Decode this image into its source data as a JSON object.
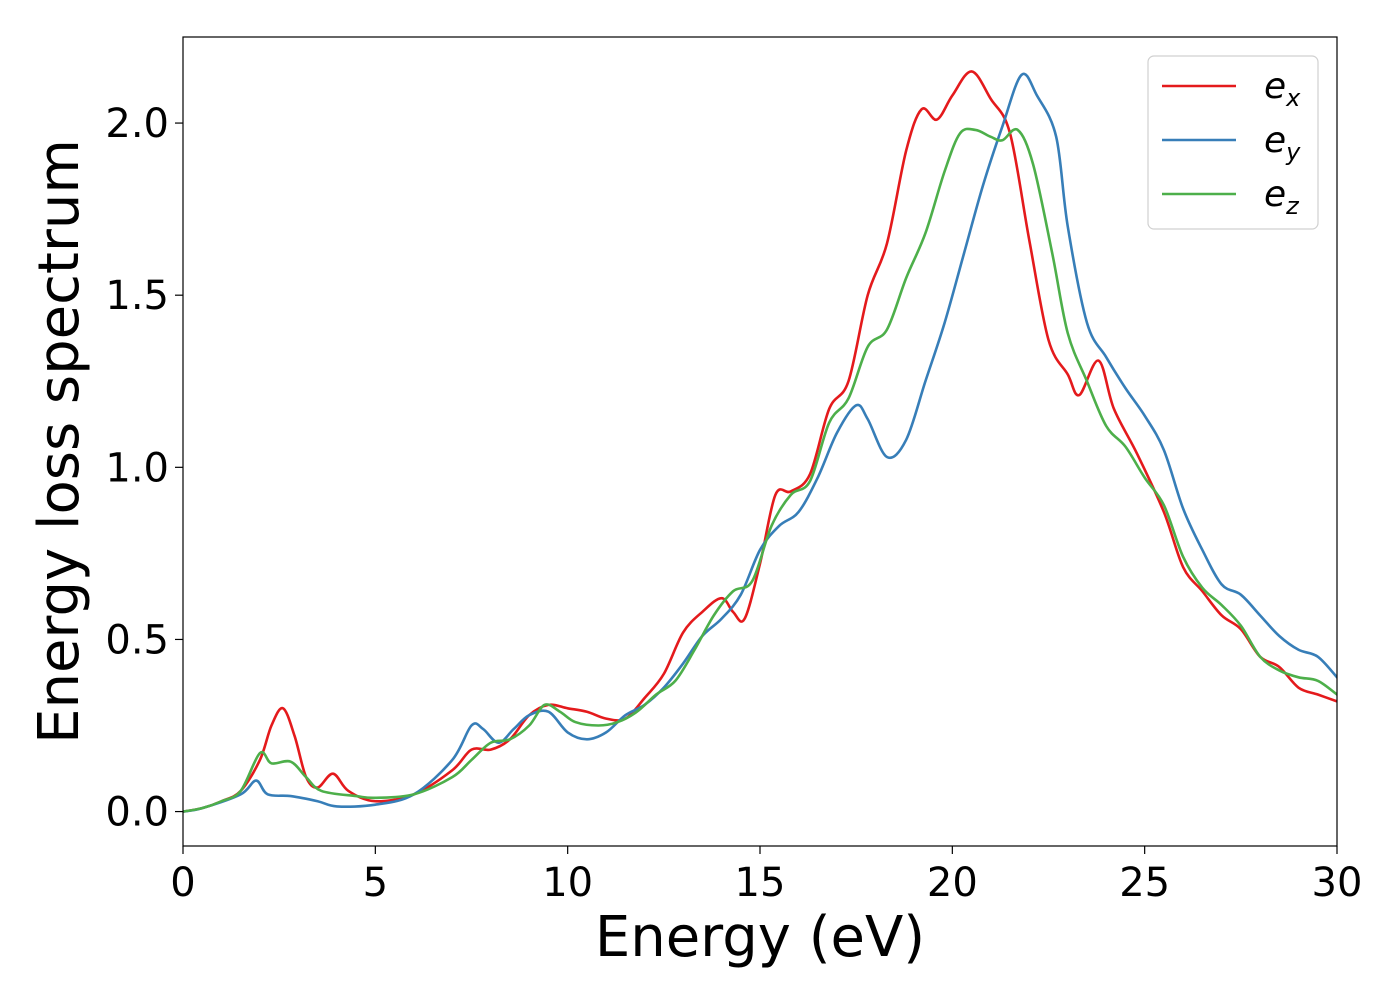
{
  "chart_data": {
    "type": "line",
    "xlabel": "Energy (eV)",
    "ylabel": "Energy loss spectrum",
    "xlim": [
      0,
      30
    ],
    "ylim": [
      -0.1,
      2.25
    ],
    "xticks": [
      0,
      5,
      10,
      15,
      20,
      25,
      30
    ],
    "xtick_labels": [
      "0",
      "5",
      "10",
      "15",
      "20",
      "25",
      "30"
    ],
    "yticks": [
      0.0,
      0.5,
      1.0,
      1.5,
      2.0
    ],
    "ytick_labels": [
      "0.0",
      "0.5",
      "1.0",
      "1.5",
      "2.0"
    ],
    "grid": false,
    "legend_position": "top-right",
    "series": [
      {
        "name": "e_x",
        "label_base": "e",
        "label_sub": "x",
        "color": "#e41a1c",
        "points": [
          [
            0,
            0.0
          ],
          [
            0.5,
            0.01
          ],
          [
            1,
            0.03
          ],
          [
            1.5,
            0.06
          ],
          [
            2,
            0.15
          ],
          [
            2.3,
            0.25
          ],
          [
            2.6,
            0.3
          ],
          [
            2.9,
            0.22
          ],
          [
            3.2,
            0.1
          ],
          [
            3.5,
            0.07
          ],
          [
            3.9,
            0.11
          ],
          [
            4.3,
            0.06
          ],
          [
            5,
            0.03
          ],
          [
            6,
            0.05
          ],
          [
            7,
            0.12
          ],
          [
            7.5,
            0.18
          ],
          [
            8,
            0.18
          ],
          [
            8.5,
            0.21
          ],
          [
            9,
            0.28
          ],
          [
            9.5,
            0.31
          ],
          [
            10,
            0.3
          ],
          [
            10.5,
            0.29
          ],
          [
            11,
            0.27
          ],
          [
            11.5,
            0.27
          ],
          [
            12,
            0.33
          ],
          [
            12.5,
            0.4
          ],
          [
            13,
            0.52
          ],
          [
            13.5,
            0.58
          ],
          [
            14,
            0.62
          ],
          [
            14.3,
            0.58
          ],
          [
            14.6,
            0.56
          ],
          [
            15,
            0.72
          ],
          [
            15.4,
            0.92
          ],
          [
            15.8,
            0.93
          ],
          [
            16.3,
            0.98
          ],
          [
            16.8,
            1.17
          ],
          [
            17.3,
            1.25
          ],
          [
            17.8,
            1.5
          ],
          [
            18.3,
            1.65
          ],
          [
            18.8,
            1.92
          ],
          [
            19.2,
            2.04
          ],
          [
            19.6,
            2.01
          ],
          [
            20,
            2.08
          ],
          [
            20.5,
            2.15
          ],
          [
            21,
            2.07
          ],
          [
            21.5,
            1.97
          ],
          [
            22,
            1.66
          ],
          [
            22.5,
            1.37
          ],
          [
            23,
            1.27
          ],
          [
            23.3,
            1.21
          ],
          [
            23.8,
            1.31
          ],
          [
            24.2,
            1.17
          ],
          [
            24.8,
            1.04
          ],
          [
            25.5,
            0.87
          ],
          [
            26,
            0.71
          ],
          [
            26.5,
            0.64
          ],
          [
            27,
            0.57
          ],
          [
            27.5,
            0.53
          ],
          [
            28,
            0.45
          ],
          [
            28.5,
            0.42
          ],
          [
            29,
            0.36
          ],
          [
            29.5,
            0.34
          ],
          [
            30,
            0.32
          ]
        ]
      },
      {
        "name": "e_y",
        "label_base": "e",
        "label_sub": "y",
        "color": "#377eb8",
        "points": [
          [
            0,
            0.0
          ],
          [
            0.5,
            0.01
          ],
          [
            1.5,
            0.05
          ],
          [
            1.9,
            0.09
          ],
          [
            2.2,
            0.05
          ],
          [
            2.8,
            0.045
          ],
          [
            3.5,
            0.03
          ],
          [
            4,
            0.015
          ],
          [
            5,
            0.02
          ],
          [
            6,
            0.05
          ],
          [
            7,
            0.15
          ],
          [
            7.5,
            0.25
          ],
          [
            7.8,
            0.24
          ],
          [
            8.2,
            0.2
          ],
          [
            8.6,
            0.24
          ],
          [
            9,
            0.28
          ],
          [
            9.5,
            0.29
          ],
          [
            10,
            0.23
          ],
          [
            10.5,
            0.21
          ],
          [
            11,
            0.23
          ],
          [
            11.5,
            0.28
          ],
          [
            12,
            0.31
          ],
          [
            12.5,
            0.36
          ],
          [
            13,
            0.43
          ],
          [
            13.5,
            0.51
          ],
          [
            14,
            0.56
          ],
          [
            14.5,
            0.63
          ],
          [
            15,
            0.76
          ],
          [
            15.5,
            0.83
          ],
          [
            16,
            0.87
          ],
          [
            16.5,
            0.97
          ],
          [
            17,
            1.1
          ],
          [
            17.5,
            1.18
          ],
          [
            17.8,
            1.14
          ],
          [
            18.3,
            1.03
          ],
          [
            18.8,
            1.08
          ],
          [
            19.3,
            1.25
          ],
          [
            19.8,
            1.42
          ],
          [
            20.3,
            1.62
          ],
          [
            20.8,
            1.82
          ],
          [
            21.3,
            1.99
          ],
          [
            21.8,
            2.14
          ],
          [
            22.2,
            2.08
          ],
          [
            22.7,
            1.96
          ],
          [
            23,
            1.7
          ],
          [
            23.5,
            1.42
          ],
          [
            24,
            1.32
          ],
          [
            24.5,
            1.23
          ],
          [
            25,
            1.15
          ],
          [
            25.5,
            1.05
          ],
          [
            26,
            0.88
          ],
          [
            26.5,
            0.76
          ],
          [
            27,
            0.66
          ],
          [
            27.5,
            0.63
          ],
          [
            28,
            0.57
          ],
          [
            28.5,
            0.51
          ],
          [
            29,
            0.47
          ],
          [
            29.5,
            0.45
          ],
          [
            30,
            0.39
          ]
        ]
      },
      {
        "name": "e_z",
        "label_base": "e",
        "label_sub": "z",
        "color": "#4daf4a",
        "points": [
          [
            0,
            0.0
          ],
          [
            0.5,
            0.01
          ],
          [
            1,
            0.03
          ],
          [
            1.5,
            0.06
          ],
          [
            2,
            0.17
          ],
          [
            2.3,
            0.14
          ],
          [
            2.8,
            0.145
          ],
          [
            3.2,
            0.1
          ],
          [
            3.6,
            0.06
          ],
          [
            4.5,
            0.045
          ],
          [
            5,
            0.04
          ],
          [
            6,
            0.05
          ],
          [
            7,
            0.1
          ],
          [
            7.5,
            0.15
          ],
          [
            8,
            0.2
          ],
          [
            8.5,
            0.21
          ],
          [
            9,
            0.25
          ],
          [
            9.4,
            0.31
          ],
          [
            9.8,
            0.29
          ],
          [
            10.2,
            0.26
          ],
          [
            10.8,
            0.25
          ],
          [
            11.3,
            0.26
          ],
          [
            11.8,
            0.29
          ],
          [
            12.3,
            0.34
          ],
          [
            12.8,
            0.38
          ],
          [
            13.3,
            0.47
          ],
          [
            13.8,
            0.57
          ],
          [
            14.3,
            0.64
          ],
          [
            14.8,
            0.67
          ],
          [
            15.3,
            0.83
          ],
          [
            15.8,
            0.92
          ],
          [
            16.3,
            0.96
          ],
          [
            16.8,
            1.13
          ],
          [
            17.3,
            1.2
          ],
          [
            17.8,
            1.35
          ],
          [
            18.3,
            1.4
          ],
          [
            18.8,
            1.55
          ],
          [
            19.3,
            1.68
          ],
          [
            19.8,
            1.86
          ],
          [
            20.2,
            1.97
          ],
          [
            20.6,
            1.98
          ],
          [
            21,
            1.96
          ],
          [
            21.3,
            1.95
          ],
          [
            21.7,
            1.98
          ],
          [
            22.1,
            1.88
          ],
          [
            22.6,
            1.62
          ],
          [
            23,
            1.39
          ],
          [
            23.5,
            1.25
          ],
          [
            24,
            1.12
          ],
          [
            24.5,
            1.06
          ],
          [
            25,
            0.97
          ],
          [
            25.5,
            0.89
          ],
          [
            26,
            0.74
          ],
          [
            26.5,
            0.65
          ],
          [
            27,
            0.6
          ],
          [
            27.5,
            0.54
          ],
          [
            28,
            0.45
          ],
          [
            28.5,
            0.41
          ],
          [
            29,
            0.39
          ],
          [
            29.5,
            0.38
          ],
          [
            30,
            0.34
          ]
        ]
      }
    ]
  }
}
